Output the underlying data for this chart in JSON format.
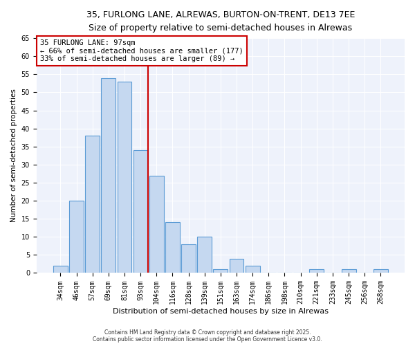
{
  "title1": "35, FURLONG LANE, ALREWAS, BURTON-ON-TRENT, DE13 7EE",
  "title2": "Size of property relative to semi-detached houses in Alrewas",
  "xlabel": "Distribution of semi-detached houses by size in Alrewas",
  "ylabel": "Number of semi-detached properties",
  "categories": [
    "34sqm",
    "46sqm",
    "57sqm",
    "69sqm",
    "81sqm",
    "93sqm",
    "104sqm",
    "116sqm",
    "128sqm",
    "139sqm",
    "151sqm",
    "163sqm",
    "174sqm",
    "186sqm",
    "198sqm",
    "210sqm",
    "221sqm",
    "233sqm",
    "245sqm",
    "256sqm",
    "268sqm"
  ],
  "values": [
    2,
    20,
    38,
    54,
    53,
    34,
    27,
    14,
    8,
    10,
    1,
    4,
    2,
    0,
    0,
    0,
    1,
    0,
    1,
    0,
    1
  ],
  "bar_color": "#c5d8f0",
  "bar_edge_color": "#5b9bd5",
  "vline_color": "#cc0000",
  "annotation_title": "35 FURLONG LANE: 97sqm",
  "annotation_line1": "← 66% of semi-detached houses are smaller (177)",
  "annotation_line2": "33% of semi-detached houses are larger (89) →",
  "annotation_box_color": "#ffffff",
  "annotation_box_edge": "#cc0000",
  "ylim": [
    0,
    65
  ],
  "yticks": [
    0,
    5,
    10,
    15,
    20,
    25,
    30,
    35,
    40,
    45,
    50,
    55,
    60,
    65
  ],
  "footnote1": "Contains HM Land Registry data © Crown copyright and database right 2025.",
  "footnote2": "Contains public sector information licensed under the Open Government Licence v3.0.",
  "bg_color": "#ffffff",
  "plot_bg_color": "#eef2fb",
  "grid_color": "#ffffff"
}
